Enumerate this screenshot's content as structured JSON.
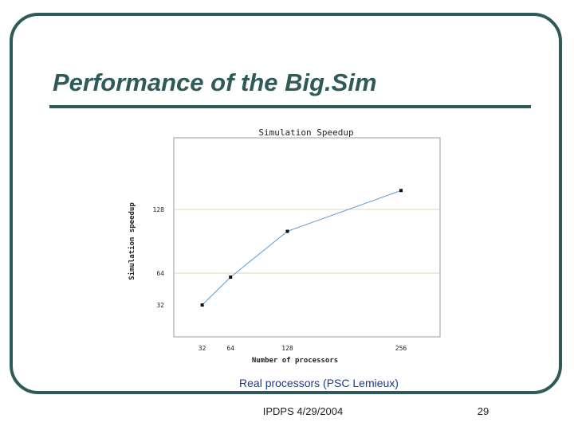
{
  "slide": {
    "title": "Performance of the Big.Sim",
    "caption": "Real processors (PSC Lemieux)",
    "footer_left": "IPDPS 4/29/2004",
    "page_number": "29"
  },
  "colors": {
    "frame": "#2f5a5a",
    "line": "#5b9bd5",
    "gridline": "#d8d8b0",
    "caption": "#1a3a8a"
  },
  "chart_data": {
    "type": "line",
    "title": "Simulation Speedup",
    "xlabel": "Number of processors",
    "ylabel": "Simulation speedup",
    "x": [
      32,
      64,
      128,
      256
    ],
    "x_ticks": [
      "32",
      "64",
      "128",
      "256"
    ],
    "y_ticks": [
      32,
      64,
      128
    ],
    "y_tick_labels": [
      "32",
      "64",
      "128"
    ],
    "series": [
      {
        "values": [
          32,
          60,
          106,
          147
        ]
      }
    ],
    "xlim": [
      0,
      300
    ],
    "ylim": [
      0,
      200
    ],
    "horizontal_gridlines_at": [
      64,
      128
    ],
    "legend": "none"
  }
}
